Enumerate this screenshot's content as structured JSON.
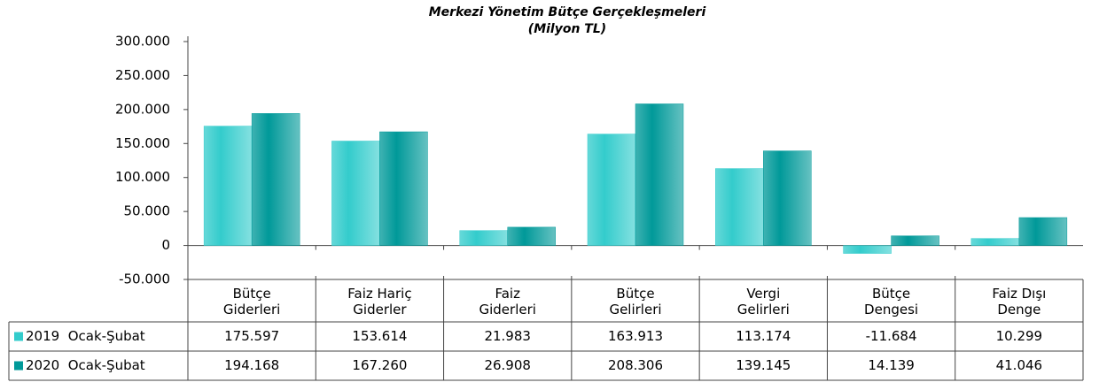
{
  "chart_data": {
    "type": "bar",
    "title": "Merkezi Yönetim Bütçe Gerçekleşmeleri",
    "subtitle": "(Milyon TL)",
    "categories": [
      "Bütçe\nGiderleri",
      "Faiz Hariç\nGiderler",
      "Faiz\nGiderleri",
      "Bütçe\nGelirleri",
      "Vergi\nGelirleri",
      "Bütçe\nDengesi",
      "Faiz Dışı\nDenge"
    ],
    "series": [
      {
        "name": "2019  Ocak-Şubat",
        "color": "#33cccc",
        "values": [
          175597,
          153614,
          21983,
          163913,
          113174,
          -11684,
          10299
        ],
        "value_labels": [
          "175.597",
          "153.614",
          "21.983",
          "163.913",
          "113.174",
          "-11.684",
          "10.299"
        ]
      },
      {
        "name": "2020  Ocak-Şubat",
        "color": "#009999",
        "values": [
          194168,
          167260,
          26908,
          208306,
          139145,
          14139,
          41046
        ],
        "value_labels": [
          "194.168",
          "167.260",
          "26.908",
          "208.306",
          "139.145",
          "14.139",
          "41.046"
        ]
      }
    ],
    "ylim": [
      -50000,
      300000
    ],
    "yticks": [
      {
        "value": -50000,
        "label": "-50.000"
      },
      0,
      {
        "value": 50000,
        "label": "50.000"
      },
      {
        "value": 100000,
        "label": "100.000"
      },
      {
        "value": 150000,
        "label": "150.000"
      },
      {
        "value": 200000,
        "label": "200.000"
      },
      {
        "value": 250000,
        "label": "250.000"
      },
      {
        "value": 300000,
        "label": "300.000"
      }
    ],
    "grid": false
  }
}
